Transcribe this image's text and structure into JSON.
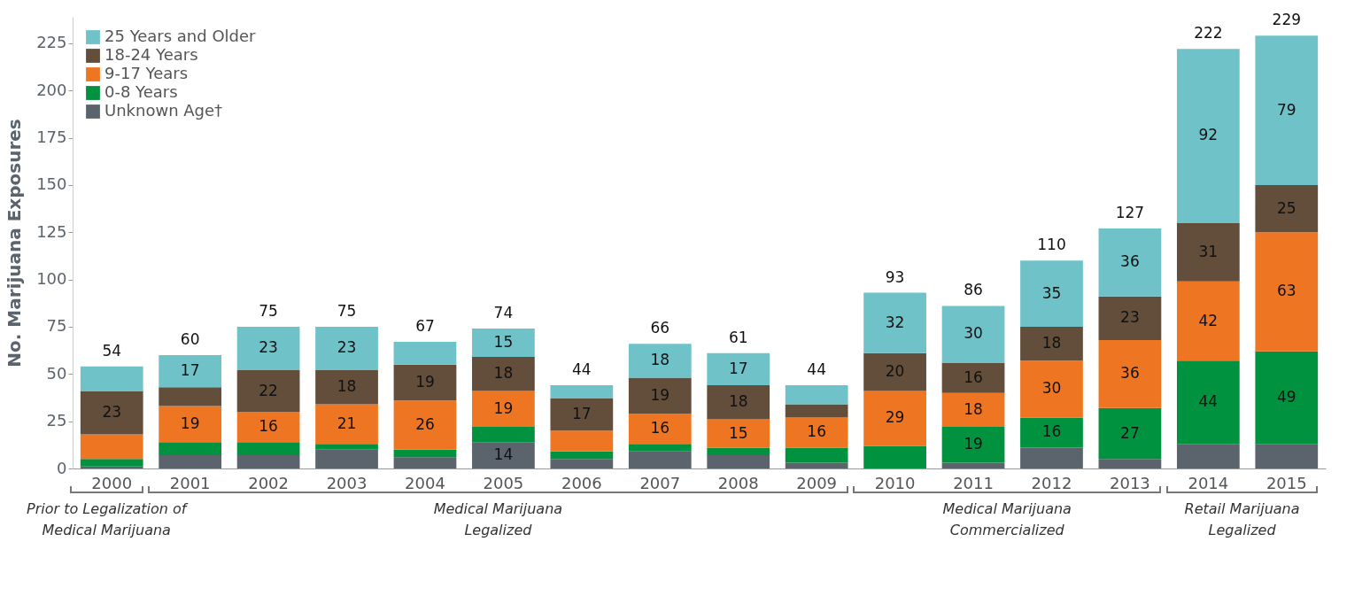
{
  "chart_data": {
    "type": "bar",
    "stacked": true,
    "ylabel": "No. Marijuana Exposures",
    "categories": [
      "2000",
      "2001",
      "2002",
      "2003",
      "2004",
      "2005",
      "2006",
      "2007",
      "2008",
      "2009",
      "2010",
      "2011",
      "2012",
      "2013",
      "2014",
      "2015"
    ],
    "series": [
      {
        "name": "Unknown Age†",
        "color": "#5b646d",
        "values": [
          1,
          7,
          7,
          10,
          6,
          14,
          5,
          9,
          7,
          3,
          0,
          3,
          11,
          5,
          13,
          13
        ],
        "value_labels": [
          null,
          null,
          null,
          null,
          null,
          "14",
          null,
          null,
          null,
          null,
          null,
          null,
          null,
          null,
          null,
          null
        ]
      },
      {
        "name": "0-8 Years",
        "color": "#00923f",
        "values": [
          4,
          7,
          7,
          3,
          4,
          8,
          4,
          4,
          4,
          8,
          12,
          19,
          16,
          27,
          44,
          49
        ],
        "value_labels": [
          null,
          null,
          null,
          null,
          null,
          null,
          null,
          null,
          null,
          null,
          null,
          "19",
          "16",
          "27",
          "44",
          "49"
        ]
      },
      {
        "name": "9-17 Years",
        "color": "#ee7623",
        "values": [
          13,
          19,
          16,
          21,
          26,
          19,
          11,
          16,
          15,
          16,
          29,
          18,
          30,
          36,
          42,
          63
        ],
        "value_labels": [
          null,
          "19",
          "16",
          "21",
          "26",
          "19",
          null,
          "16",
          "15",
          "16",
          "29",
          "18",
          "30",
          "36",
          "42",
          "63"
        ]
      },
      {
        "name": "18-24 Years",
        "color": "#624e3b",
        "values": [
          23,
          10,
          22,
          18,
          19,
          18,
          17,
          19,
          18,
          7,
          20,
          16,
          18,
          23,
          31,
          25
        ],
        "value_labels": [
          "23",
          null,
          "22",
          "18",
          "19",
          "18",
          "17",
          "19",
          "18",
          null,
          "20",
          "16",
          "18",
          "23",
          "31",
          "25"
        ]
      },
      {
        "name": "25 Years and Older",
        "color": "#6fc3c8",
        "values": [
          13,
          17,
          23,
          23,
          12,
          15,
          7,
          18,
          17,
          10,
          32,
          30,
          35,
          36,
          92,
          79
        ],
        "value_labels": [
          null,
          "17",
          "23",
          "23",
          null,
          "15",
          null,
          "18",
          "17",
          null,
          "32",
          "30",
          "35",
          "36",
          "92",
          "79"
        ]
      }
    ],
    "totals": [
      "54",
      "60",
      "75",
      "75",
      "67",
      "74",
      "44",
      "66",
      "61",
      "44",
      "93",
      "86",
      "110",
      "127",
      "222",
      "229"
    ],
    "ylim": [
      0,
      239
    ],
    "yticks": [
      0,
      25,
      50,
      75,
      100,
      125,
      150,
      175,
      200,
      225
    ],
    "legend": "top left",
    "grid": false,
    "annotations": [
      "Prior to Legalization of Medical Marijuana",
      "Medical Marijuana Legalized",
      "Medical Marijuana Commercialized",
      "Retail Marijuana Legalized"
    ]
  }
}
